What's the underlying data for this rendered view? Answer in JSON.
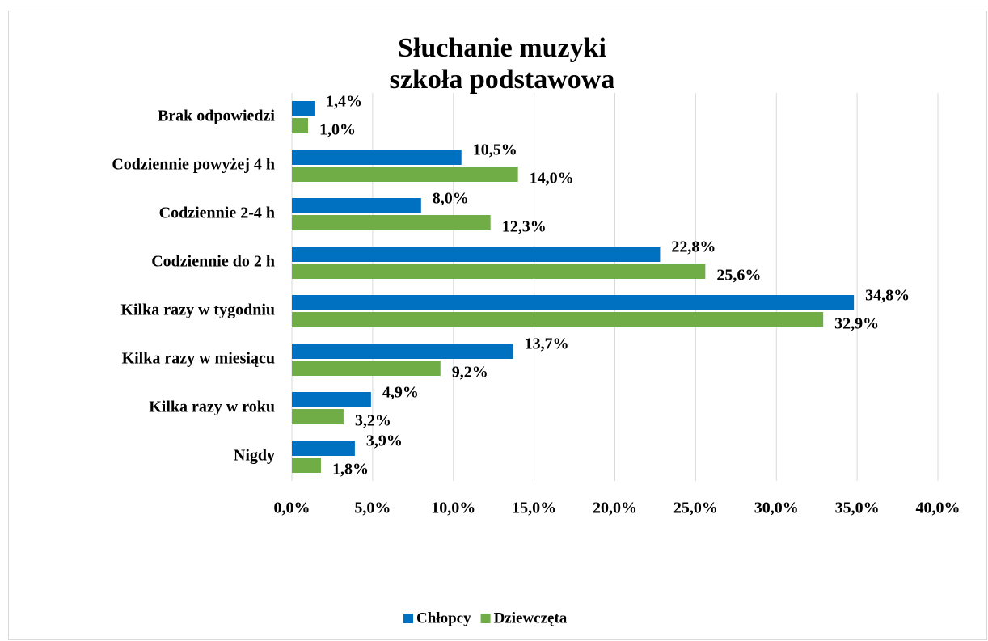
{
  "chart_data": {
    "type": "bar",
    "orientation": "horizontal",
    "title": "Słuchanie muzyki",
    "subtitle": "szkoła podstawowa",
    "categories": [
      "Brak odpowiedzi",
      "Codziennie powyżej 4 h",
      "Codziennie 2-4 h",
      "Codziennie do 2 h",
      "Kilka razy w tygodniu",
      "Kilka razy w miesiącu",
      "Kilka razy w roku",
      "Nigdy"
    ],
    "series": [
      {
        "name": "Chłopcy",
        "color": "#0070c0",
        "values": [
          1.4,
          10.5,
          8.0,
          22.8,
          34.8,
          13.7,
          4.9,
          3.9
        ],
        "value_labels": [
          "1,4%",
          "10,5%",
          "8,0%",
          "22,8%",
          "34,8%",
          "13,7%",
          "4,9%",
          "3,9%"
        ]
      },
      {
        "name": "Dziewczęta",
        "color": "#70ad47",
        "values": [
          1.0,
          14.0,
          12.3,
          25.6,
          32.9,
          9.2,
          3.2,
          1.8
        ],
        "value_labels": [
          "1,0%",
          "14,0%",
          "12,3%",
          "25,6%",
          "32,9%",
          "9,2%",
          "3,2%",
          "1,8%"
        ]
      }
    ],
    "xlim": [
      0,
      40
    ],
    "xticks": [
      {
        "value": 0,
        "label": "0,0%"
      },
      {
        "value": 5,
        "label": "5,0%"
      },
      {
        "value": 10,
        "label": "10,0%"
      },
      {
        "value": 15,
        "label": "15,0%"
      },
      {
        "value": 20,
        "label": "20,0%"
      },
      {
        "value": 25,
        "label": "25,0%"
      },
      {
        "value": 30,
        "label": "30,0%"
      },
      {
        "value": 35,
        "label": "35,0%"
      },
      {
        "value": 40,
        "label": "40,0%"
      }
    ],
    "grid": true,
    "legend": "bottom"
  }
}
